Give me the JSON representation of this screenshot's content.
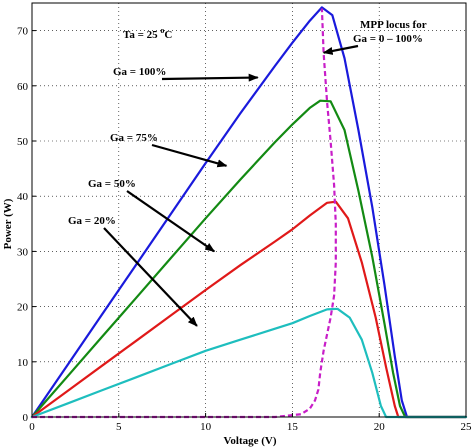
{
  "chart_data": {
    "type": "line",
    "title": "",
    "xlabel": "Voltage (V)",
    "ylabel": "Power (W)",
    "xlim": [
      0,
      25
    ],
    "ylim": [
      0,
      75
    ],
    "xticks": [
      0,
      5,
      10,
      15,
      20,
      25
    ],
    "yticks": [
      0,
      10,
      20,
      30,
      40,
      50,
      60,
      70
    ],
    "grid": true,
    "series": [
      {
        "name": "Ga = 100%",
        "color": "#1a1adc",
        "x": [
          0,
          2,
          4,
          6,
          8,
          10,
          12,
          14,
          15,
          16,
          16.7,
          17.3,
          18,
          18.8,
          19.6,
          20.3,
          20.9,
          21.3,
          21.6,
          22,
          25
        ],
        "y": [
          0,
          9.2,
          18.4,
          27.6,
          36.8,
          46,
          55,
          63.6,
          67.8,
          71.8,
          74.2,
          72.8,
          65,
          52,
          38,
          24,
          11,
          3,
          0,
          0,
          0
        ]
      },
      {
        "name": "Ga = 75%",
        "color": "#138a13",
        "x": [
          0,
          2,
          4,
          6,
          8,
          10,
          12,
          14,
          15,
          16,
          16.6,
          17.2,
          18,
          18.8,
          19.6,
          20.3,
          20.8,
          21.2,
          21.5,
          22,
          25
        ],
        "y": [
          0,
          7.2,
          14.4,
          21.6,
          28.8,
          36,
          43,
          49.8,
          53,
          56,
          57.3,
          57.2,
          52,
          41,
          29,
          17,
          8,
          2,
          0,
          0,
          0
        ]
      },
      {
        "name": "Ga = 50%",
        "color": "#e01919",
        "x": [
          0,
          2,
          4,
          6,
          8,
          10,
          12,
          14,
          15,
          16,
          17,
          17.5,
          18.2,
          19,
          19.8,
          20.4,
          20.9,
          21.1,
          22,
          25
        ],
        "y": [
          0,
          4.6,
          9.2,
          13.8,
          18.4,
          23,
          27.5,
          31.8,
          34,
          36.5,
          38.8,
          39,
          36,
          28,
          18,
          9,
          2,
          0,
          0,
          0
        ]
      },
      {
        "name": "Ga = 20%",
        "color": "#1ebebe",
        "x": [
          0,
          2,
          4,
          6,
          8,
          10,
          12,
          14,
          15,
          16,
          17,
          17.6,
          18.3,
          19,
          19.6,
          20.1,
          20.4,
          21,
          25
        ],
        "y": [
          0,
          2.4,
          4.8,
          7.2,
          9.6,
          12,
          14,
          16,
          17,
          18.3,
          19.5,
          19.6,
          18,
          14,
          8,
          2,
          0,
          0,
          0
        ]
      },
      {
        "name": "MPP locus",
        "color": "#c81ec8",
        "dashed": true,
        "x": [
          0,
          14,
          15.5,
          16,
          16.3,
          16.5,
          16.6,
          16.8,
          17,
          17.2,
          17.4,
          17.5,
          17.5,
          17.4,
          17.2,
          17,
          16.8,
          16.7
        ],
        "y": [
          0,
          0,
          0.5,
          1.5,
          3,
          5,
          8,
          12,
          15,
          18,
          22,
          28,
          35,
          42,
          50,
          57,
          66,
          74
        ]
      }
    ],
    "annotations": {
      "ta": "Ta = 25 ",
      "ta_sup": "o",
      "ta_unit": "C",
      "mpp_line1": "MPP locus for",
      "mpp_line2": "Ga = 0 – 100%",
      "labels": [
        {
          "text": "Ga = 100%",
          "arrow_to": [
            13,
            61.5
          ]
        },
        {
          "text": "Ga = 75%",
          "arrow_to": [
            11.2,
            45.5
          ]
        },
        {
          "text": "Ga = 50%",
          "arrow_to": [
            10.5,
            30
          ]
        },
        {
          "text": "Ga = 20%",
          "arrow_to": [
            9.5,
            16.5
          ]
        },
        {
          "text": "MPP locus for",
          "arrow_to": [
            16.8,
            66
          ]
        }
      ]
    }
  }
}
